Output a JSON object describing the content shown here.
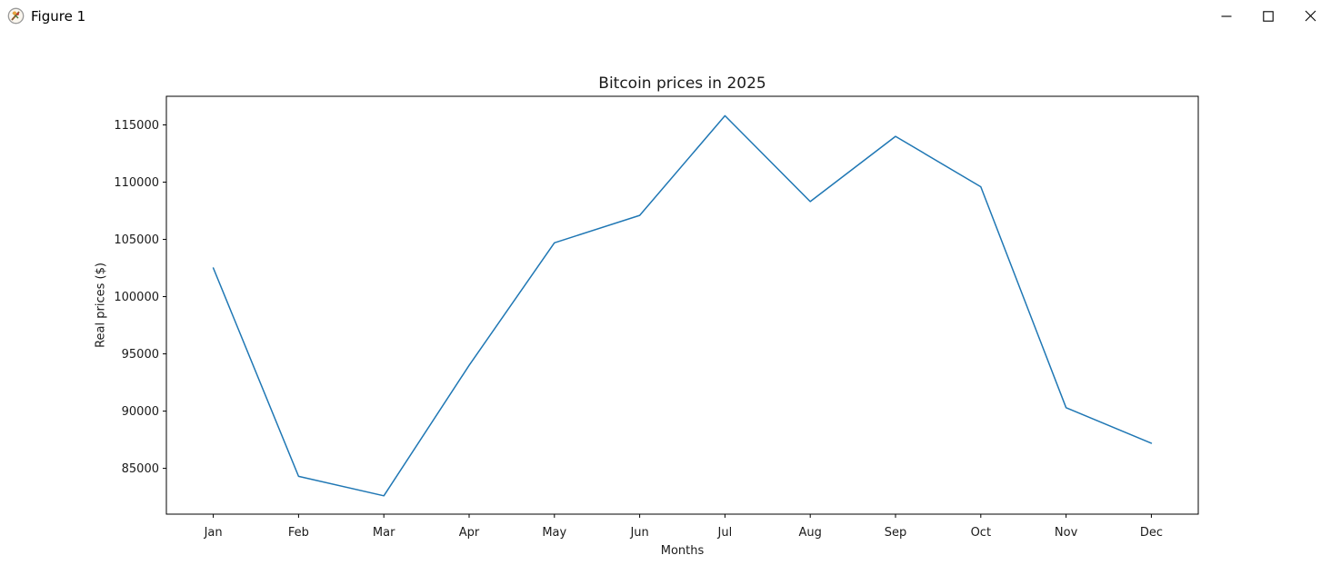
{
  "window": {
    "title": "Figure 1"
  },
  "chart_data": {
    "type": "line",
    "title": "Bitcoin prices in 2025",
    "xlabel": "Months",
    "ylabel": "Real prices ($)",
    "categories": [
      "Jan",
      "Feb",
      "Mar",
      "Apr",
      "May",
      "Jun",
      "Jul",
      "Aug",
      "Sep",
      "Oct",
      "Nov",
      "Dec"
    ],
    "values": [
      102500,
      84300,
      82600,
      94000,
      104700,
      107100,
      115800,
      108300,
      114000,
      109600,
      90300,
      87200
    ],
    "yticks": [
      85000,
      90000,
      95000,
      100000,
      105000,
      110000,
      115000
    ],
    "ylim": [
      81000,
      117500
    ],
    "xlim": [
      -0.55,
      11.55
    ],
    "line_color": "#1f77b4",
    "spine_color": "#000000",
    "text_color": "#1a1a1a",
    "grid": false,
    "legend_position": "none"
  }
}
